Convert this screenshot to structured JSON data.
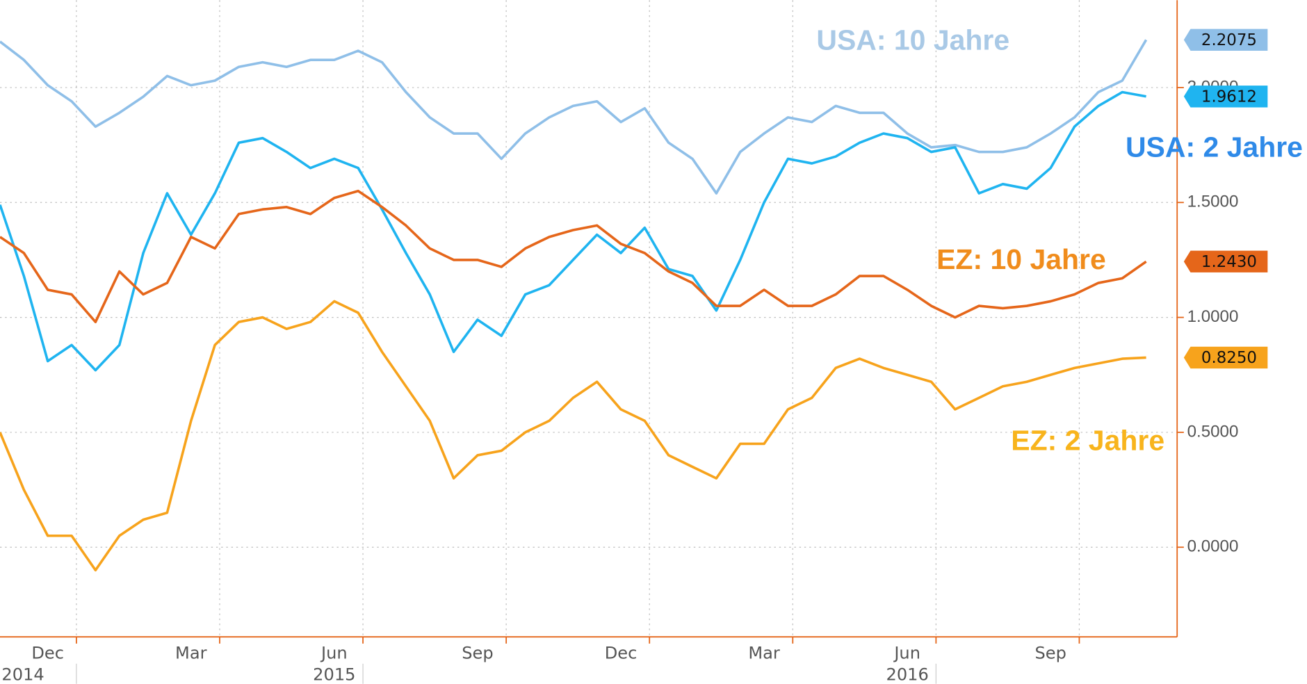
{
  "chart_data": {
    "type": "line",
    "categories": [
      null,
      null,
      "Dec",
      null,
      null,
      null,
      null,
      null,
      "Mar",
      null,
      null,
      null,
      null,
      null,
      "Jun",
      null,
      null,
      null,
      null,
      null,
      "Sep",
      null,
      null,
      null,
      null,
      null,
      "Dec",
      null,
      null,
      null,
      null,
      null,
      "Mar",
      null,
      null,
      null,
      null,
      null,
      "Jun",
      null,
      null,
      null,
      null,
      null,
      "Sep",
      null,
      null,
      null,
      null
    ],
    "category_years": [
      null,
      null,
      "2014",
      null,
      null,
      null,
      null,
      null,
      null,
      null,
      null,
      null,
      null,
      null,
      "2015",
      null,
      null,
      null,
      null,
      null,
      null,
      null,
      null,
      null,
      null,
      null,
      null,
      null,
      null,
      null,
      null,
      null,
      null,
      null,
      null,
      null,
      null,
      null,
      "2016",
      null,
      null,
      null,
      null,
      null,
      null,
      null,
      null,
      null,
      null
    ],
    "ylim": [
      -0.39,
      2.38
    ],
    "yticks": [
      {
        "value": 0,
        "label": "0.0000"
      },
      {
        "value": 0.5,
        "label": "0.5000"
      },
      {
        "value": 1,
        "label": "1.0000"
      },
      {
        "value": 1.5,
        "label": "1.5000"
      },
      {
        "value": 2,
        "label": "2.0000"
      }
    ],
    "grid": true,
    "series": [
      {
        "name": "USA: 10 Jahre",
        "color": "#8fbfe8",
        "label_color": "#a9c9e6",
        "last_label": "2.2075",
        "values": [
          2.2,
          2.12,
          2.01,
          1.94,
          1.83,
          1.89,
          1.96,
          2.05,
          2.01,
          2.03,
          2.09,
          2.11,
          2.09,
          2.12,
          2.12,
          2.16,
          2.11,
          1.98,
          1.87,
          1.8,
          1.8,
          1.69,
          1.8,
          1.87,
          1.92,
          1.94,
          1.85,
          1.91,
          1.76,
          1.69,
          1.54,
          1.72,
          1.8,
          1.87,
          1.85,
          1.92,
          1.89,
          1.89,
          1.8,
          1.74,
          1.75,
          1.72,
          1.72,
          1.74,
          1.8,
          1.87,
          1.98,
          2.03,
          2.2075
        ]
      },
      {
        "name": "USA: 2 Jahre",
        "color": "#1fb4f0",
        "label_color": "#2f8ae8",
        "last_label": "1.9612",
        "values": [
          1.49,
          1.18,
          0.81,
          0.88,
          0.77,
          0.88,
          1.28,
          1.54,
          1.36,
          1.54,
          1.76,
          1.78,
          1.72,
          1.65,
          1.69,
          1.65,
          1.47,
          1.28,
          1.1,
          0.85,
          0.99,
          0.92,
          1.1,
          1.14,
          1.25,
          1.36,
          1.28,
          1.39,
          1.21,
          1.18,
          1.03,
          1.25,
          1.5,
          1.69,
          1.67,
          1.7,
          1.76,
          1.8,
          1.78,
          1.72,
          1.74,
          1.54,
          1.58,
          1.56,
          1.65,
          1.83,
          1.92,
          1.98,
          1.9612
        ]
      },
      {
        "name": "EZ: 10 Jahre",
        "color": "#e5661a",
        "label_color": "#f08c1c",
        "last_label": "1.2430",
        "values": [
          1.35,
          1.28,
          1.12,
          1.1,
          0.98,
          1.2,
          1.1,
          1.15,
          1.35,
          1.3,
          1.45,
          1.47,
          1.48,
          1.45,
          1.52,
          1.55,
          1.48,
          1.4,
          1.3,
          1.25,
          1.25,
          1.22,
          1.3,
          1.35,
          1.38,
          1.4,
          1.32,
          1.28,
          1.2,
          1.15,
          1.05,
          1.05,
          1.12,
          1.05,
          1.05,
          1.1,
          1.18,
          1.18,
          1.12,
          1.05,
          1.0,
          1.05,
          1.04,
          1.05,
          1.07,
          1.1,
          1.15,
          1.17,
          1.243
        ]
      },
      {
        "name": "EZ: 2 Jahre",
        "color": "#f7a31c",
        "label_color": "#f8b41c",
        "last_label": "0.8250",
        "values": [
          0.5,
          0.25,
          0.05,
          0.05,
          -0.1,
          0.05,
          0.12,
          0.15,
          0.55,
          0.88,
          0.98,
          1.0,
          0.95,
          0.98,
          1.07,
          1.02,
          0.85,
          0.7,
          0.55,
          0.3,
          0.4,
          0.42,
          0.5,
          0.55,
          0.65,
          0.72,
          0.6,
          0.55,
          0.4,
          0.35,
          0.3,
          0.45,
          0.45,
          0.6,
          0.65,
          0.78,
          0.82,
          0.78,
          0.75,
          0.72,
          0.6,
          0.65,
          0.7,
          0.72,
          0.75,
          0.78,
          0.8,
          0.82,
          0.825
        ]
      }
    ]
  }
}
